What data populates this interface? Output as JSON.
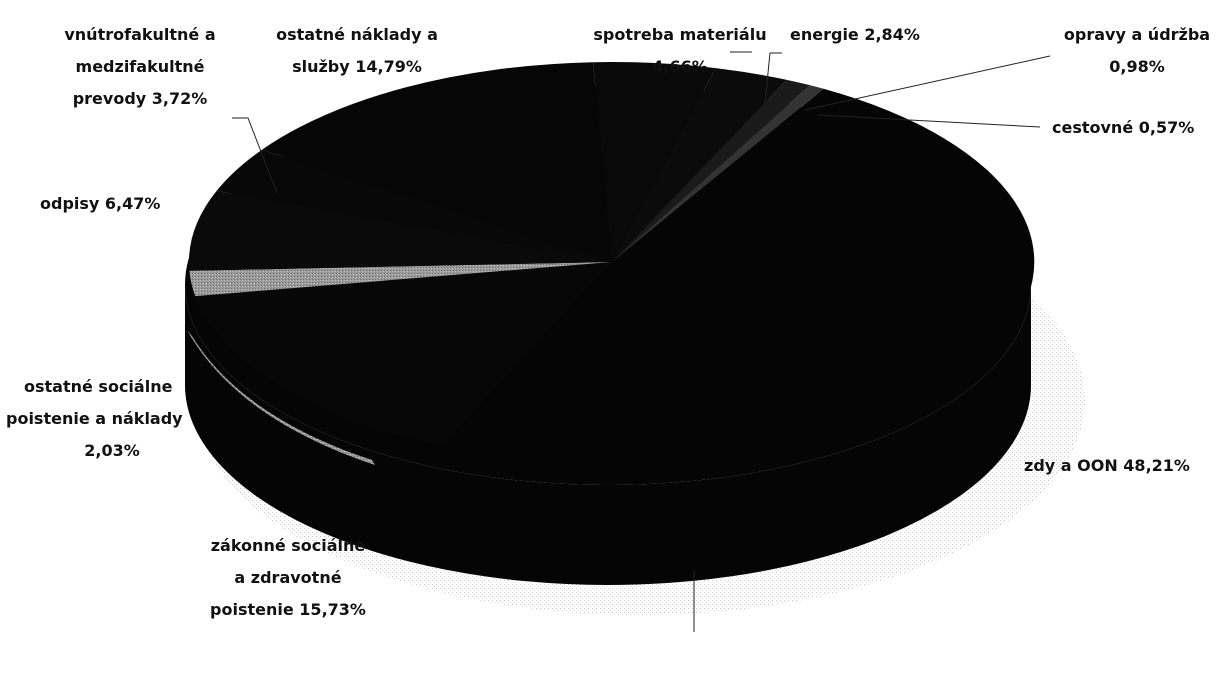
{
  "chart_data": {
    "type": "pie",
    "title": "",
    "legend": "none",
    "slices": [
      {
        "label": "mzdy a OON",
        "value": 48.21,
        "display": "mzdy a OON 48,21%"
      },
      {
        "label": "zákonné sociálne a zdravotné poistenie",
        "value": 15.73,
        "display": "zákonné sociálne a zdravotné poistenie 15,73%"
      },
      {
        "label": "ostatné sociálne poistenie a náklady",
        "value": 2.03,
        "display": "ostatné sociálne poistenie a náklady 2,03%"
      },
      {
        "label": "odpisy",
        "value": 6.47,
        "display": "odpisy 6,47%"
      },
      {
        "label": "vnútrofakultné a medzifakultné prevody",
        "value": 3.72,
        "display": "vnútrofakultné a medzifakultné prevody 3,72%"
      },
      {
        "label": "ostatné náklady a služby",
        "value": 14.79,
        "display": "ostatné náklady a služby 14,79%"
      },
      {
        "label": "spotreba materiálu",
        "value": 4.66,
        "display": "spotreba materiálu 4,66%"
      },
      {
        "label": "energie",
        "value": 2.84,
        "display": "energie 2,84%"
      },
      {
        "label": "opravy a údržba",
        "value": 0.98,
        "display": "opravy a údržba 0,98%"
      },
      {
        "label": "cestovné",
        "value": 0.57,
        "display": "cestovné 0,57%"
      }
    ],
    "colors": {
      "primary": "#050505",
      "accent": "#2a2a2a",
      "gray": "#9a9a9a",
      "stipple": "#cccccc"
    }
  },
  "labels": {
    "mzdy": "zdy a OON 48,21%",
    "zakonne": [
      "zákonné sociálne",
      "a zdravotné",
      "poistenie 15,73%"
    ],
    "ostatne_soc": [
      "ostatné sociálne",
      "poistenie a náklady",
      "2,03%"
    ],
    "odpisy": "odpisy 6,47%",
    "vnutro": [
      "vnútrofakultné a",
      "medzifakultné",
      "prevody 3,72%"
    ],
    "ostatne_nakl": [
      "ostatné náklady a",
      "služby 14,79%"
    ],
    "spotreba": [
      "spotreba materiálu",
      "4,66%"
    ],
    "energie": "energie 2,84%",
    "opravy": [
      "opravy a údržba",
      "0,98%"
    ],
    "cestovne": "cestovné 0,57%"
  }
}
